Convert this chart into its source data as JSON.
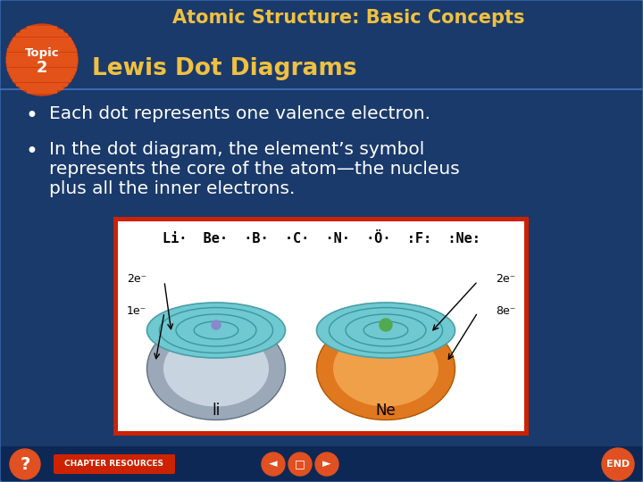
{
  "title": "Atomic Structure: Basic Concepts",
  "slide_heading": "Lewis Dot Diagrams",
  "bullet1": "Each dot represents one valence electron.",
  "bullet2_line1": "In the dot diagram, the element’s symbol",
  "bullet2_line2": "represents the core of the atom—the nucleus",
  "bullet2_line3": "plus all the inner electrons.",
  "li_label": "li",
  "ne_label": "Ne",
  "li_electrons_top": "2e⁻",
  "li_electrons_bot": "1e⁻",
  "ne_electrons_top": "2e⁻",
  "ne_electrons_bot": "8e⁻",
  "bg_color": "#1a3a6b",
  "title_color": "#f0c040",
  "heading_color": "#f0c040",
  "bullet_color": "#ffffff",
  "topic_bg": "#e05020",
  "diagram_border": "#cc2200",
  "diagram_bg": "#ffffff",
  "bottom_bar_color": "#0d2855",
  "nav_color": "#e05020"
}
